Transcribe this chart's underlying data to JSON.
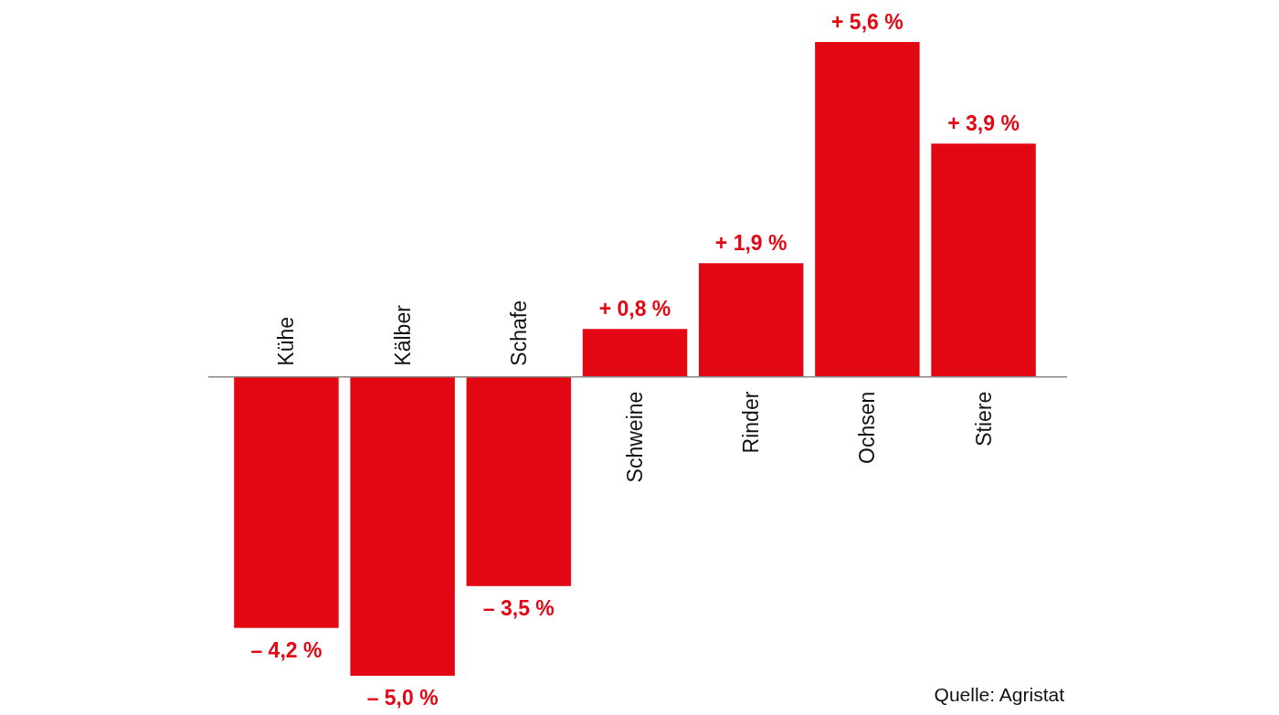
{
  "chart_data": {
    "type": "bar",
    "categories": [
      "Kühe",
      "Kälber",
      "Schafe",
      "Schweine",
      "Rinder",
      "Ochsen",
      "Stiere"
    ],
    "values": [
      -4.2,
      -5.0,
      -3.5,
      0.8,
      1.9,
      5.6,
      3.9
    ],
    "value_labels": [
      "– 4,2 %",
      "– 5,0 %",
      "– 3,5 %",
      "+ 0,8 %",
      "+ 1,9 %",
      "+ 5,6 %",
      "+ 3,9 %"
    ],
    "color": "#e30613",
    "annotations": [
      "Quelle: Agristat"
    ]
  }
}
